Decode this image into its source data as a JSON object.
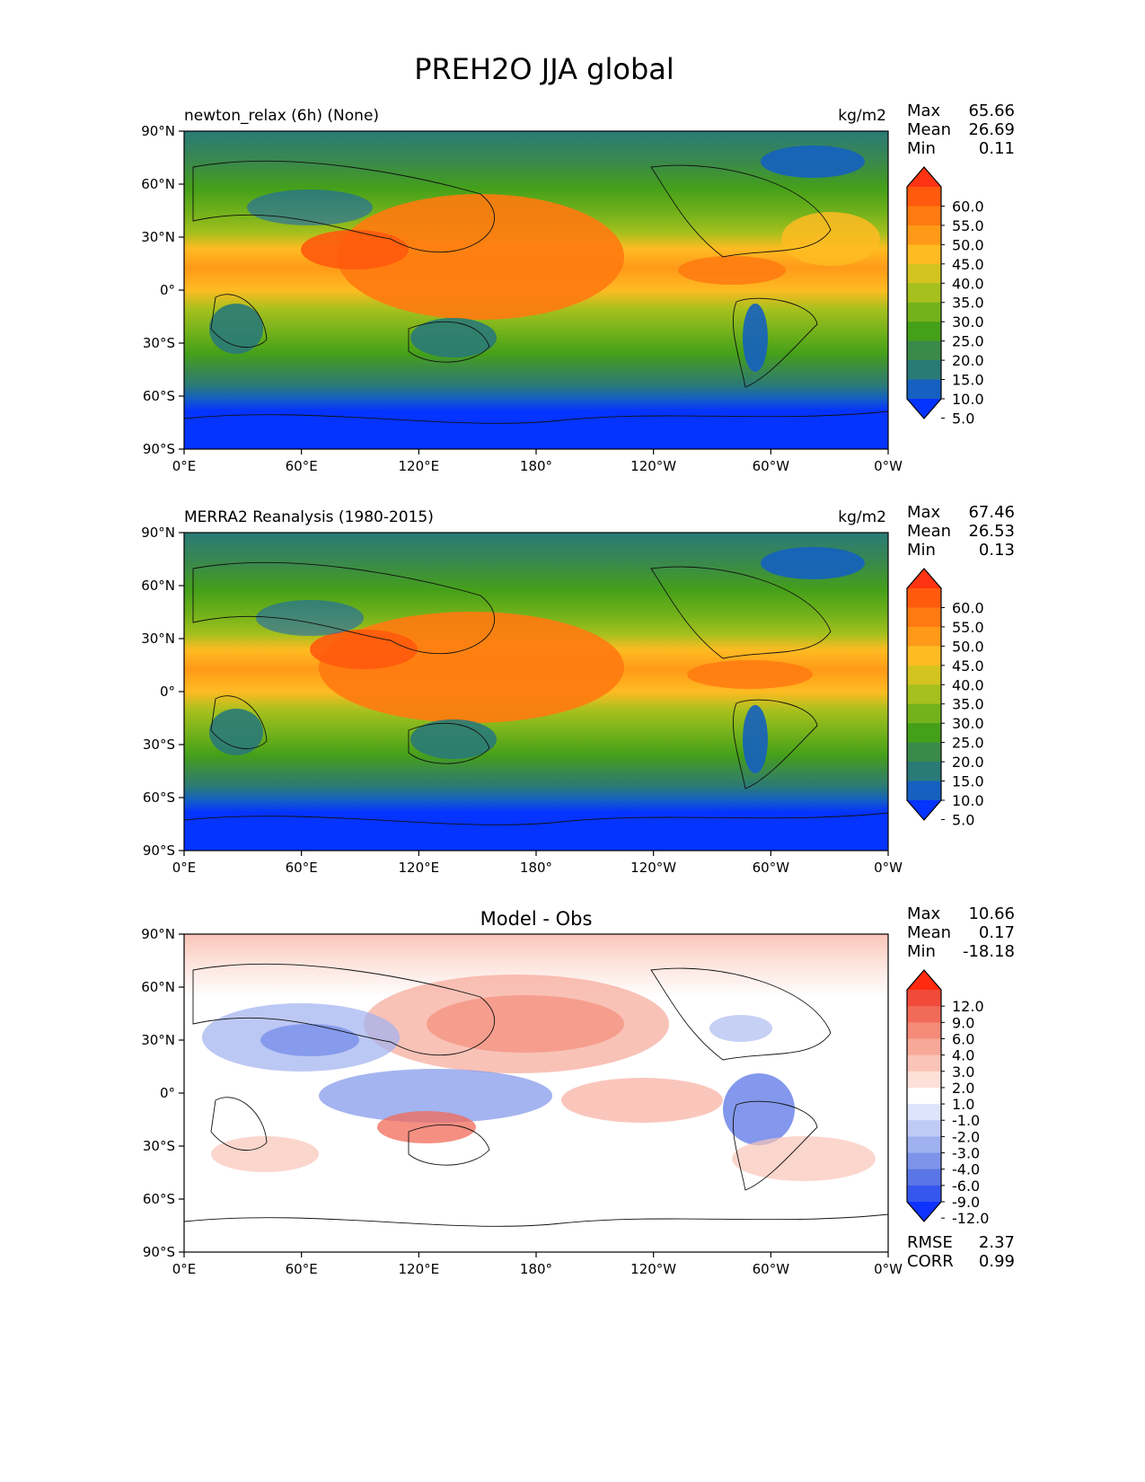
{
  "figure": {
    "title": "PREH2O JJA global"
  },
  "chart_data": [
    {
      "type": "heatmap",
      "title": "newton_relax (6h) (None)",
      "units": "kg/m2",
      "stats": [
        {
          "label": "Max",
          "value": "65.66"
        },
        {
          "label": "Mean",
          "value": "26.69"
        },
        {
          "label": "Min",
          "value": "0.11"
        }
      ],
      "colorbar": {
        "levels": [
          "60.0",
          "55.0",
          "50.0",
          "45.0",
          "40.0",
          "35.0",
          "30.0",
          "25.0",
          "20.0",
          "15.0",
          "10.0",
          "5.0"
        ],
        "colors": [
          "#ff3311",
          "#ff5a0d",
          "#ff7a10",
          "#ff9a18",
          "#ffbb22",
          "#d4c420",
          "#a6c01d",
          "#74b21b",
          "#45a019",
          "#3a8a4a",
          "#2a7a78",
          "#1560c0",
          "#0533ff"
        ]
      },
      "xaxis": {
        "ticks": [
          "0°E",
          "60°E",
          "120°E",
          "180°",
          "120°W",
          "60°W",
          "0°W"
        ]
      },
      "yaxis": {
        "ticks": [
          "90°N",
          "60°N",
          "30°N",
          "0°",
          "30°S",
          "60°S",
          "90°S"
        ]
      }
    },
    {
      "type": "heatmap",
      "title": "MERRA2 Reanalysis (1980-2015)",
      "units": "kg/m2",
      "stats": [
        {
          "label": "Max",
          "value": "67.46"
        },
        {
          "label": "Mean",
          "value": "26.53"
        },
        {
          "label": "Min",
          "value": "0.13"
        }
      ],
      "colorbar": {
        "levels": [
          "60.0",
          "55.0",
          "50.0",
          "45.0",
          "40.0",
          "35.0",
          "30.0",
          "25.0",
          "20.0",
          "15.0",
          "10.0",
          "5.0"
        ],
        "colors": [
          "#ff3311",
          "#ff5a0d",
          "#ff7a10",
          "#ff9a18",
          "#ffbb22",
          "#d4c420",
          "#a6c01d",
          "#74b21b",
          "#45a019",
          "#3a8a4a",
          "#2a7a78",
          "#1560c0",
          "#0533ff"
        ]
      },
      "xaxis": {
        "ticks": [
          "0°E",
          "60°E",
          "120°E",
          "180°",
          "120°W",
          "60°W",
          "0°W"
        ]
      },
      "yaxis": {
        "ticks": [
          "90°N",
          "60°N",
          "30°N",
          "0°",
          "30°S",
          "60°S",
          "90°S"
        ]
      }
    },
    {
      "type": "heatmap",
      "title": "Model - Obs",
      "units": "",
      "stats": [
        {
          "label": "Max",
          "value": "10.66"
        },
        {
          "label": "Mean",
          "value": "0.17"
        },
        {
          "label": "Min",
          "value": "-18.18"
        }
      ],
      "extra_stats": [
        {
          "label": "RMSE",
          "value": "2.37"
        },
        {
          "label": "CORR",
          "value": "0.99"
        }
      ],
      "colorbar": {
        "levels": [
          "12.0",
          "9.0",
          "6.0",
          "4.0",
          "3.0",
          "2.0",
          "1.0",
          "-1.0",
          "-2.0",
          "-3.0",
          "-4.0",
          "-6.0",
          "-9.0",
          "-12.0"
        ],
        "colors": [
          "#ff2a10",
          "#f04a3a",
          "#f26a58",
          "#f48a78",
          "#f7a898",
          "#fac4b8",
          "#fde0d8",
          "#ffffff",
          "#dde4fb",
          "#bfcbf5",
          "#a0b1ef",
          "#7d94ea",
          "#5a76e6",
          "#3657ee",
          "#0f33ff"
        ]
      },
      "xaxis": {
        "ticks": [
          "0°E",
          "60°E",
          "120°E",
          "180°",
          "120°W",
          "60°W",
          "0°W"
        ]
      },
      "yaxis": {
        "ticks": [
          "90°N",
          "60°N",
          "30°N",
          "0°",
          "30°S",
          "60°S",
          "90°S"
        ]
      }
    }
  ]
}
